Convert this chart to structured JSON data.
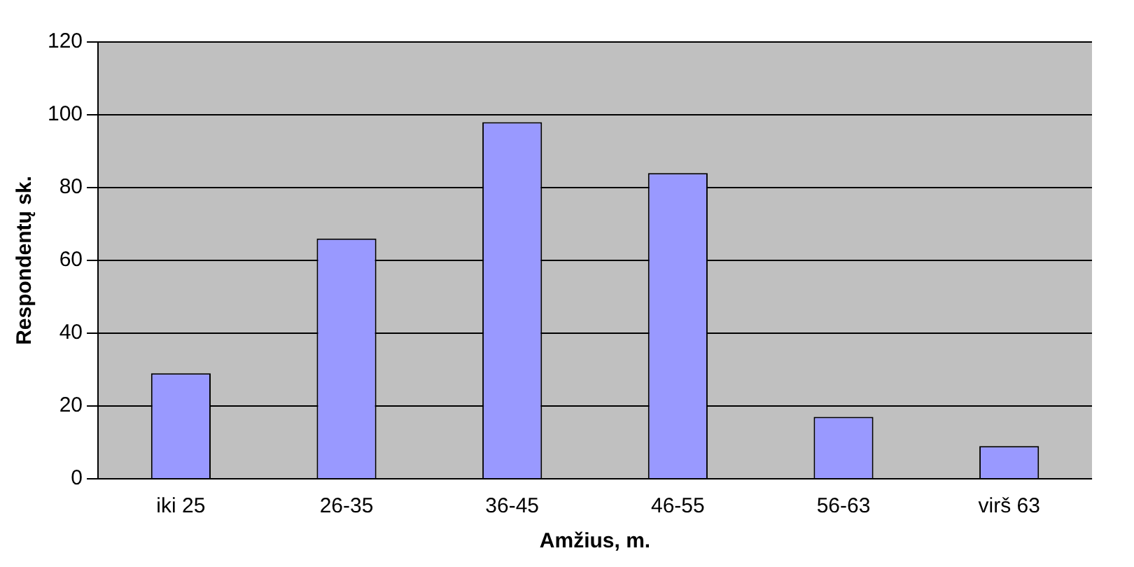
{
  "chart_data": {
    "type": "bar",
    "categories": [
      "iki 25",
      "26-35",
      "36-45",
      "46-55",
      "56-63",
      "virš 63"
    ],
    "values": [
      29,
      66,
      98,
      84,
      17,
      9
    ],
    "color": "#9999ff",
    "xlabel": "Amžius, m.",
    "ylabel": "Respondentų sk.",
    "ylim": [
      0,
      120
    ],
    "yticks": [
      0,
      20,
      40,
      60,
      80,
      100,
      120
    ],
    "grid": "y",
    "legend": false
  }
}
